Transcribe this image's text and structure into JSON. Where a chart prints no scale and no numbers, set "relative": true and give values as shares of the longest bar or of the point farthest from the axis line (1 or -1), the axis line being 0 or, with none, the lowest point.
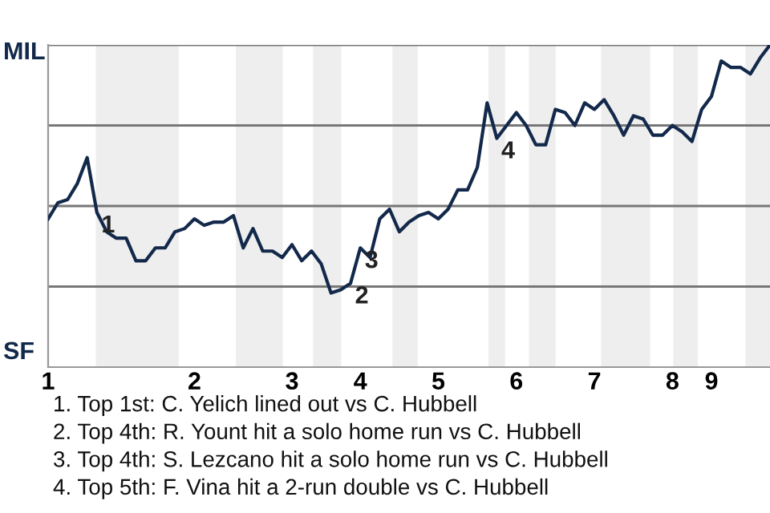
{
  "chart_data": {
    "type": "line",
    "relative": true,
    "categories": [
      "1",
      null,
      null,
      null,
      null,
      null,
      null,
      null,
      null,
      null,
      null,
      null,
      null,
      null,
      null,
      "2",
      null,
      null,
      null,
      null,
      null,
      null,
      null,
      null,
      null,
      "3",
      null,
      null,
      null,
      null,
      null,
      null,
      "4",
      null,
      null,
      null,
      null,
      null,
      null,
      null,
      "5",
      null,
      null,
      null,
      null,
      null,
      null,
      null,
      "6",
      null,
      null,
      null,
      null,
      null,
      null,
      null,
      "7",
      null,
      null,
      null,
      null,
      null,
      null,
      null,
      "8",
      null,
      null,
      null,
      "9",
      null,
      null,
      null,
      null,
      null,
      null
    ],
    "series": [
      {
        "color": "#13294b",
        "values": [
          0.46,
          0.51,
          0.52,
          0.57,
          0.65,
          0.48,
          0.42,
          0.4,
          0.4,
          0.33,
          0.33,
          0.37,
          0.37,
          0.42,
          0.43,
          0.46,
          0.44,
          0.45,
          0.45,
          0.47,
          0.37,
          0.43,
          0.36,
          0.36,
          0.34,
          0.38,
          0.33,
          0.36,
          0.32,
          0.23,
          0.24,
          0.26,
          0.37,
          0.34,
          0.46,
          0.49,
          0.42,
          0.45,
          0.47,
          0.48,
          0.46,
          0.49,
          0.55,
          0.55,
          0.62,
          0.82,
          0.71,
          0.75,
          0.79,
          0.75,
          0.69,
          0.69,
          0.8,
          0.79,
          0.75,
          0.82,
          0.8,
          0.83,
          0.78,
          0.72,
          0.78,
          0.77,
          0.72,
          0.72,
          0.75,
          0.73,
          0.7,
          0.8,
          0.84,
          0.95,
          0.93,
          0.93,
          0.91,
          0.96,
          1
        ]
      }
    ],
    "ref_lines": [
      {
        "axis": "y",
        "value": 0.25,
        "color": "#777777"
      },
      {
        "axis": "y",
        "value": 0.5,
        "color": "#777777"
      },
      {
        "axis": "y",
        "value": 0.75,
        "color": "#777777"
      },
      {
        "axis": "y",
        "value": 1,
        "color": "#777777"
      }
    ],
    "annotations": [
      "MIL",
      "SF",
      {
        "text": "1",
        "y": 0.48
      },
      {
        "text": "2",
        "y": 0.26
      },
      {
        "text": "3",
        "y": 0.37
      },
      {
        "text": "4",
        "y": 0.71
      },
      "1. Top 1st: C. Yelich lined out vs C. Hubbell",
      "2. Top 4th: R. Yount hit a solo home run vs C. Hubbell",
      "3. Top 4th: S. Lezcano hit a solo home run vs C. Hubbell",
      "4. Top 5th: F. Vina hit a 2-run double vs C. Hubbell"
    ]
  }
}
